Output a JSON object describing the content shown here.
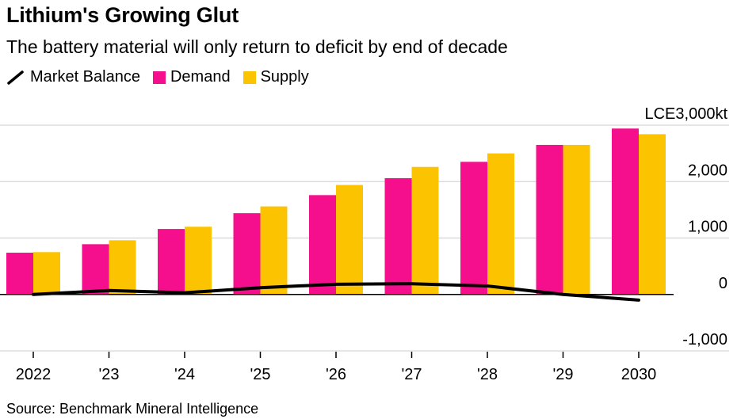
{
  "header": {
    "title": "Lithium's Growing Glut",
    "subtitle": "The battery material will only return to deficit by end of decade"
  },
  "legend": {
    "market_balance": "Market Balance",
    "demand": "Demand",
    "supply": "Supply"
  },
  "source": "Source: Benchmark Mineral Intelligence",
  "colors": {
    "demand": "#f50f8c",
    "supply": "#fcc300",
    "market_balance": "#000000",
    "grid": "#cccccc"
  },
  "chart_data": {
    "type": "bar",
    "title": "Lithium's Growing Glut",
    "subtitle": "The battery material will only return to deficit by end of decade",
    "categories": [
      "2022",
      "'23",
      "'24",
      "'25",
      "'26",
      "'27",
      "'28",
      "'29",
      "2030"
    ],
    "series": [
      {
        "name": "Demand",
        "type": "bar",
        "values": [
          740,
          890,
          1160,
          1440,
          1760,
          2060,
          2350,
          2650,
          2940
        ]
      },
      {
        "name": "Supply",
        "type": "bar",
        "values": [
          750,
          960,
          1200,
          1560,
          1940,
          2260,
          2500,
          2650,
          2840
        ]
      },
      {
        "name": "Market Balance",
        "type": "line",
        "values": [
          0,
          70,
          30,
          120,
          180,
          190,
          150,
          0,
          -100
        ]
      }
    ],
    "ylabel": "LCE",
    "yunit": "kt",
    "ylim": [
      -1000,
      3000
    ],
    "yticks": [
      {
        "value": 3000,
        "label": "LCE3,000kt"
      },
      {
        "value": 2000,
        "label": "2,000"
      },
      {
        "value": 1000,
        "label": "1,000"
      },
      {
        "value": 0,
        "label": "0"
      },
      {
        "value": -1000,
        "label": "-1,000"
      }
    ],
    "grid": true,
    "legend_position": "top-left"
  }
}
